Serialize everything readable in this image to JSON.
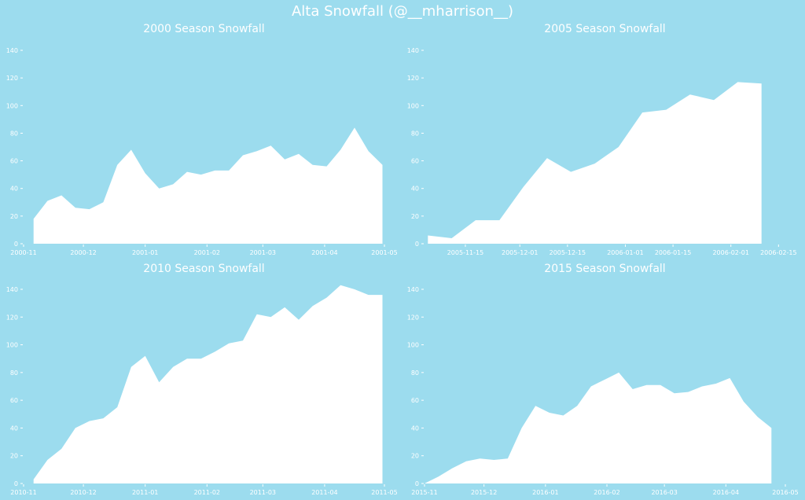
{
  "colors": {
    "background": "#9cdcee",
    "area_fill": "#ffffff",
    "text": "#ffffff"
  },
  "suptitle": "Alta Snowfall (@__mharrison__)",
  "chart_data": [
    {
      "type": "area",
      "title": "2000 Season Snowfall",
      "xlabel": "",
      "ylabel": "",
      "ylim": [
        0,
        140
      ],
      "yticks": [
        0,
        20,
        40,
        60,
        80,
        100,
        120,
        140
      ],
      "xlim": [
        "2000-11-01",
        "2001-05-01"
      ],
      "xticks": [
        {
          "date": "2000-11-01",
          "label": "2000-11"
        },
        {
          "date": "2000-12-01",
          "label": "2000-12"
        },
        {
          "date": "2001-01-01",
          "label": "2001-01"
        },
        {
          "date": "2001-02-01",
          "label": "2001-02"
        },
        {
          "date": "2001-03-01",
          "label": "2001-03"
        },
        {
          "date": "2001-04-01",
          "label": "2001-04"
        },
        {
          "date": "2001-05-01",
          "label": "2001-05"
        }
      ],
      "grid": false,
      "x": [
        "2000-11-06",
        "2000-11-13",
        "2000-11-20",
        "2000-11-27",
        "2000-12-04",
        "2000-12-11",
        "2000-12-18",
        "2000-12-25",
        "2001-01-01",
        "2001-01-08",
        "2001-01-15",
        "2001-01-22",
        "2001-01-29",
        "2001-02-05",
        "2001-02-12",
        "2001-02-19",
        "2001-02-26",
        "2001-03-05",
        "2001-03-12",
        "2001-03-19",
        "2001-03-26",
        "2001-04-02",
        "2001-04-09",
        "2001-04-16",
        "2001-04-23",
        "2001-04-30"
      ],
      "y": [
        18,
        31,
        35,
        26,
        25,
        30,
        57,
        68,
        51,
        40,
        43,
        52,
        50,
        53,
        53,
        64,
        67,
        71,
        61,
        65,
        57,
        56,
        68,
        84,
        67,
        57
      ]
    },
    {
      "type": "area",
      "title": "2005 Season Snowfall",
      "xlabel": "",
      "ylabel": "",
      "ylim": [
        0,
        140
      ],
      "yticks": [
        0,
        20,
        40,
        60,
        80,
        100,
        120,
        140
      ],
      "xlim": [
        "2005-11-03",
        "2006-02-17"
      ],
      "xticks": [
        {
          "date": "2005-11-15",
          "label": "2005-11-15"
        },
        {
          "date": "2005-12-01",
          "label": "2005-12-01"
        },
        {
          "date": "2005-12-15",
          "label": "2005-12-15"
        },
        {
          "date": "2006-01-01",
          "label": "2006-01-01"
        },
        {
          "date": "2006-01-15",
          "label": "2006-01-15"
        },
        {
          "date": "2006-02-01",
          "label": "2006-02-01"
        },
        {
          "date": "2006-02-15",
          "label": "2006-02-15"
        }
      ],
      "grid": false,
      "x": [
        "2005-11-04",
        "2005-11-11",
        "2005-11-18",
        "2005-11-25",
        "2005-12-02",
        "2005-12-09",
        "2005-12-16",
        "2005-12-23",
        "2005-12-30",
        "2006-01-06",
        "2006-01-13",
        "2006-01-20",
        "2006-01-27",
        "2006-02-03",
        "2006-02-10"
      ],
      "y": [
        6,
        4,
        17,
        17,
        41,
        62,
        52,
        58,
        70,
        95,
        97,
        108,
        104,
        117,
        116
      ]
    },
    {
      "type": "area",
      "title": "2010 Season Snowfall",
      "xlabel": "",
      "ylabel": "",
      "ylim": [
        0,
        140
      ],
      "yticks": [
        0,
        20,
        40,
        60,
        80,
        100,
        120,
        140
      ],
      "xlim": [
        "2010-11-01",
        "2011-05-01"
      ],
      "xticks": [
        {
          "date": "2010-11-01",
          "label": "2010-11"
        },
        {
          "date": "2010-12-01",
          "label": "2010-12"
        },
        {
          "date": "2011-01-01",
          "label": "2011-01"
        },
        {
          "date": "2011-02-01",
          "label": "2011-02"
        },
        {
          "date": "2011-03-01",
          "label": "2011-03"
        },
        {
          "date": "2011-04-01",
          "label": "2011-04"
        },
        {
          "date": "2011-05-01",
          "label": "2011-05"
        }
      ],
      "grid": false,
      "x": [
        "2010-11-06",
        "2010-11-13",
        "2010-11-20",
        "2010-11-27",
        "2010-12-04",
        "2010-12-11",
        "2010-12-18",
        "2010-12-25",
        "2011-01-01",
        "2011-01-08",
        "2011-01-15",
        "2011-01-22",
        "2011-01-29",
        "2011-02-05",
        "2011-02-12",
        "2011-02-19",
        "2011-02-26",
        "2011-03-05",
        "2011-03-12",
        "2011-03-19",
        "2011-03-26",
        "2011-04-02",
        "2011-04-09",
        "2011-04-16",
        "2011-04-23",
        "2011-04-30"
      ],
      "y": [
        3,
        17,
        25,
        40,
        45,
        47,
        55,
        84,
        92,
        73,
        84,
        90,
        90,
        95,
        101,
        103,
        122,
        120,
        127,
        118,
        128,
        134,
        143,
        140,
        136,
        136
      ]
    },
    {
      "type": "area",
      "title": "2015 Season Snowfall",
      "xlabel": "",
      "ylabel": "",
      "ylim": [
        0,
        140
      ],
      "yticks": [
        0,
        20,
        40,
        60,
        80,
        100,
        120,
        140
      ],
      "xlim": [
        "2015-11-01",
        "2016-05-01"
      ],
      "xticks": [
        {
          "date": "2015-11-01",
          "label": "2015-11"
        },
        {
          "date": "2015-12-01",
          "label": "2015-12"
        },
        {
          "date": "2016-01-01",
          "label": "2016-01"
        },
        {
          "date": "2016-02-01",
          "label": "2016-02"
        },
        {
          "date": "2016-03-01",
          "label": "2016-03"
        },
        {
          "date": "2016-04-01",
          "label": "2016-04"
        },
        {
          "date": "2016-05-01",
          "label": "2016-05"
        }
      ],
      "grid": false,
      "x": [
        "2015-11-01",
        "2015-11-08",
        "2015-11-15",
        "2015-11-22",
        "2015-11-29",
        "2015-12-06",
        "2015-12-13",
        "2015-12-20",
        "2015-12-27",
        "2016-01-03",
        "2016-01-10",
        "2016-01-17",
        "2016-01-24",
        "2016-01-31",
        "2016-02-07",
        "2016-02-14",
        "2016-02-21",
        "2016-02-28",
        "2016-03-06",
        "2016-03-13",
        "2016-03-20",
        "2016-03-27",
        "2016-04-03",
        "2016-04-10",
        "2016-04-17",
        "2016-04-24"
      ],
      "y": [
        0,
        5,
        11,
        16,
        18,
        17,
        18,
        40,
        56,
        51,
        49,
        56,
        70,
        75,
        80,
        68,
        71,
        71,
        65,
        66,
        70,
        72,
        76,
        59,
        48,
        40
      ]
    }
  ]
}
